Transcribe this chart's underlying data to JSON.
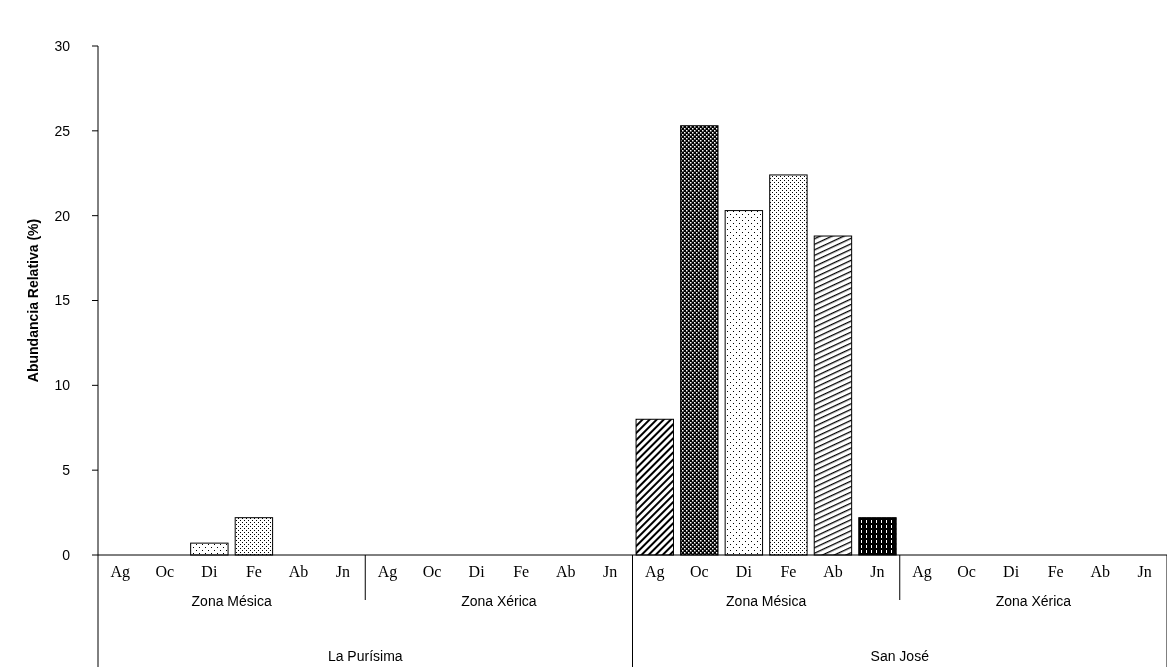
{
  "chart_data": {
    "type": "bar",
    "ylabel": "Abundancia Relativa (%)",
    "categories": [
      "Ag",
      "Oc",
      "Di",
      "Fe",
      "Ab",
      "Jn",
      "Ag",
      "Oc",
      "Di",
      "Fe",
      "Ab",
      "Jn",
      "Ag",
      "Oc",
      "Di",
      "Fe",
      "Ab",
      "Jn",
      "Ag",
      "Oc",
      "Di",
      "Fe",
      "Ab",
      "Jn"
    ],
    "values": [
      0,
      0,
      0.7,
      2.2,
      0,
      0,
      0,
      0,
      0,
      0,
      0,
      0,
      8,
      25.3,
      20.3,
      22.4,
      18.8,
      2.2,
      0,
      0,
      0,
      0,
      0,
      0
    ],
    "colors": [
      "#000000",
      "#000000",
      "#000000",
      "#000000",
      "#000000",
      "#000000",
      "#000000",
      "#000000",
      "#000000",
      "#000000",
      "#000000",
      "#000000",
      "#000000",
      "#000000",
      "#000000",
      "#000000",
      "#000000",
      "#000000",
      "#000000",
      "#000000",
      "#000000",
      "#000000",
      "#000000",
      "#000000"
    ],
    "ylim": [
      0,
      30
    ],
    "yticks": [
      0,
      5,
      10,
      15,
      20,
      25,
      30
    ],
    "annotations": [
      "Zona Mésica",
      "Zona Xérica",
      "Zona Mésica",
      "Zona Xérica",
      "La Purísima",
      "San José"
    ]
  }
}
